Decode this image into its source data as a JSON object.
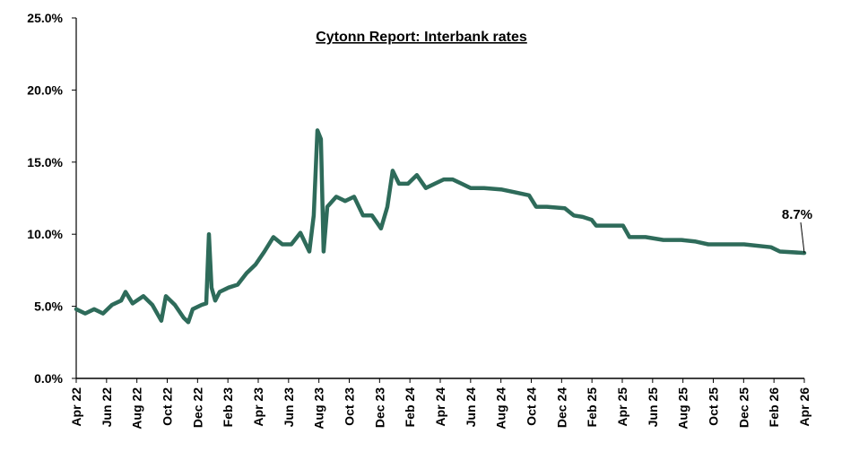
{
  "chart_data": {
    "type": "line",
    "title": "Cytonn Report: Interbank rates",
    "xlabel": "",
    "ylabel": "",
    "x_unit": "months since Apr 2022",
    "ylim": [
      0,
      25
    ],
    "xlim": [
      0,
      48
    ],
    "grid": false,
    "y_ticks": [
      0,
      5,
      10,
      15,
      20,
      25
    ],
    "y_tick_labels": [
      "0.0%",
      "5.0%",
      "10.0%",
      "15.0%",
      "20.0%",
      "25.0%"
    ],
    "x_tick_labels": [
      "Apr 22",
      "Jun 22",
      "Aug 22",
      "Oct 22",
      "Dec 22",
      "Feb 23",
      "Apr 23",
      "Jun 23",
      "Aug 23",
      "Oct 23",
      "Dec 23",
      "Feb 24",
      "Apr 24",
      "Jun 24",
      "Aug 24",
      "Oct 24",
      "Dec 24",
      "Feb 25",
      "Apr 25",
      "Jun 25",
      "Aug 25",
      "Oct 25",
      "Dec 25",
      "Feb 26",
      "Apr 26"
    ],
    "series": [
      {
        "name": "Interbank rate",
        "color": "#2e6b5a",
        "x": [
          0,
          0.59,
          1.18,
          1.77,
          2.36,
          2.96,
          3.25,
          3.72,
          4.43,
          5.02,
          5.61,
          5.91,
          6.5,
          7.09,
          7.39,
          7.68,
          8.27,
          8.57,
          8.75,
          8.92,
          9.16,
          9.46,
          10.05,
          10.64,
          11.23,
          11.82,
          12.41,
          13.0,
          13.59,
          14.18,
          14.78,
          15.37,
          15.66,
          15.9,
          16.13,
          16.31,
          16.55,
          17.14,
          17.73,
          18.32,
          18.91,
          19.5,
          20.09,
          20.51,
          20.86,
          21.28,
          21.87,
          22.46,
          23.05,
          23.64,
          24.23,
          24.82,
          25.41,
          26.0,
          26.89,
          28.07,
          28.96,
          29.85,
          30.32,
          31.03,
          32.21,
          32.8,
          33.39,
          33.98,
          34.28,
          35.17,
          36.05,
          36.47,
          37.53,
          38.71,
          39.89,
          40.78,
          41.67,
          42.26,
          44.03,
          45.8,
          46.39,
          48
        ],
        "y": [
          4.8,
          4.5,
          4.8,
          4.5,
          5.1,
          5.4,
          6.0,
          5.2,
          5.7,
          5.1,
          4.0,
          5.7,
          5.1,
          4.2,
          3.9,
          4.8,
          5.1,
          5.2,
          10.0,
          6.3,
          5.4,
          6.0,
          6.3,
          6.5,
          7.3,
          7.9,
          8.8,
          9.8,
          9.3,
          9.3,
          10.1,
          8.8,
          11.3,
          17.2,
          16.6,
          8.8,
          11.9,
          12.6,
          12.3,
          12.6,
          11.3,
          11.3,
          10.4,
          11.9,
          14.4,
          13.5,
          13.5,
          14.1,
          13.2,
          13.5,
          13.8,
          13.8,
          13.5,
          13.2,
          13.2,
          13.1,
          12.9,
          12.7,
          11.9,
          11.9,
          11.8,
          11.3,
          11.2,
          11.0,
          10.6,
          10.6,
          10.6,
          9.8,
          9.8,
          9.6,
          9.6,
          9.5,
          9.3,
          9.3,
          9.3,
          9.1,
          8.8,
          8.7
        ]
      }
    ],
    "annotations": [
      {
        "text": "8.7%",
        "x": 48,
        "y": 8.7
      }
    ]
  }
}
